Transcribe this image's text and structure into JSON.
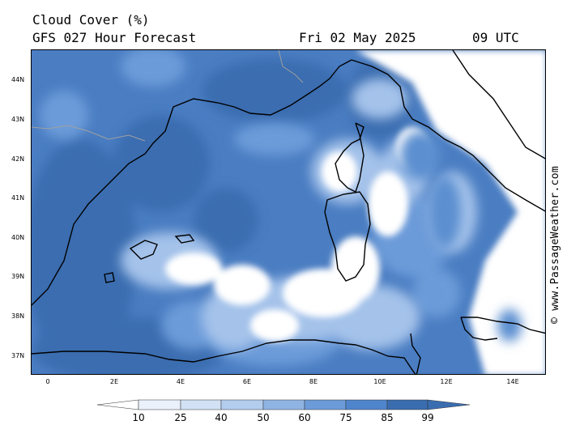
{
  "header": {
    "title": "Cloud Cover (%)",
    "subtitle": "GFS 027 Hour Forecast",
    "date": "Fri 02 May 2025",
    "time": "09 UTC"
  },
  "credit": "© www.PassageWeather.com",
  "map": {
    "lat_labels": [
      "44N",
      "43N",
      "42N",
      "41N",
      "40N",
      "39N",
      "38N",
      "37N"
    ],
    "lon_labels": [
      "0",
      "2E",
      "4E",
      "6E",
      "8E",
      "10E",
      "12E",
      "14E"
    ],
    "colors": {
      "cloud_dark": "#3a6db0",
      "cloud_mid": "#5b8fd0",
      "cloud_light": "#a4c2ea",
      "clear": "#ffffff",
      "coastline": "#000000",
      "border": "#a0a0a0"
    }
  },
  "legend": {
    "levels": [
      "10",
      "25",
      "40",
      "50",
      "60",
      "75",
      "85",
      "99"
    ],
    "colors": [
      "#ffffff",
      "#eaf1fb",
      "#d2e1f5",
      "#b3cdee",
      "#8fb4e4",
      "#6c9bd9",
      "#4f85cc",
      "#3a6db0"
    ]
  }
}
